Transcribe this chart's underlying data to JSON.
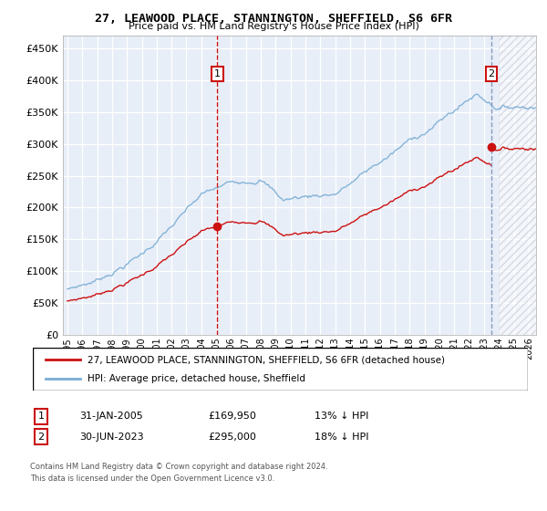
{
  "title": "27, LEAWOOD PLACE, STANNINGTON, SHEFFIELD, S6 6FR",
  "subtitle": "Price paid vs. HM Land Registry's House Price Index (HPI)",
  "legend_line1": "27, LEAWOOD PLACE, STANNINGTON, SHEFFIELD, S6 6FR (detached house)",
  "legend_line2": "HPI: Average price, detached house, Sheffield",
  "footnote1": "Contains HM Land Registry data © Crown copyright and database right 2024.",
  "footnote2": "This data is licensed under the Open Government Licence v3.0.",
  "annotation1_label": "1",
  "annotation1_date": "31-JAN-2005",
  "annotation1_price": "£169,950",
  "annotation1_hpi": "13% ↓ HPI",
  "annotation2_label": "2",
  "annotation2_date": "30-JUN-2023",
  "annotation2_price": "£295,000",
  "annotation2_hpi": "18% ↓ HPI",
  "sale1_x": 2005.083,
  "sale1_y": 169950,
  "sale2_x": 2023.5,
  "sale2_y": 295000,
  "hpi_color": "#7aadd4",
  "price_color": "#cc1111",
  "sale1_vline_color": "#cc1111",
  "sale2_vline_color": "#8899bb",
  "background_color": "#e8eef8",
  "ylim": [
    0,
    470000
  ],
  "yticks": [
    0,
    50000,
    100000,
    150000,
    200000,
    250000,
    300000,
    350000,
    400000,
    450000
  ],
  "xlim_start": 1994.7,
  "xlim_end": 2026.5,
  "xticks": [
    1995,
    1996,
    1997,
    1998,
    1999,
    2000,
    2001,
    2002,
    2003,
    2004,
    2005,
    2006,
    2007,
    2008,
    2009,
    2010,
    2011,
    2012,
    2013,
    2014,
    2015,
    2016,
    2017,
    2018,
    2019,
    2020,
    2021,
    2022,
    2023,
    2024,
    2025,
    2026
  ]
}
